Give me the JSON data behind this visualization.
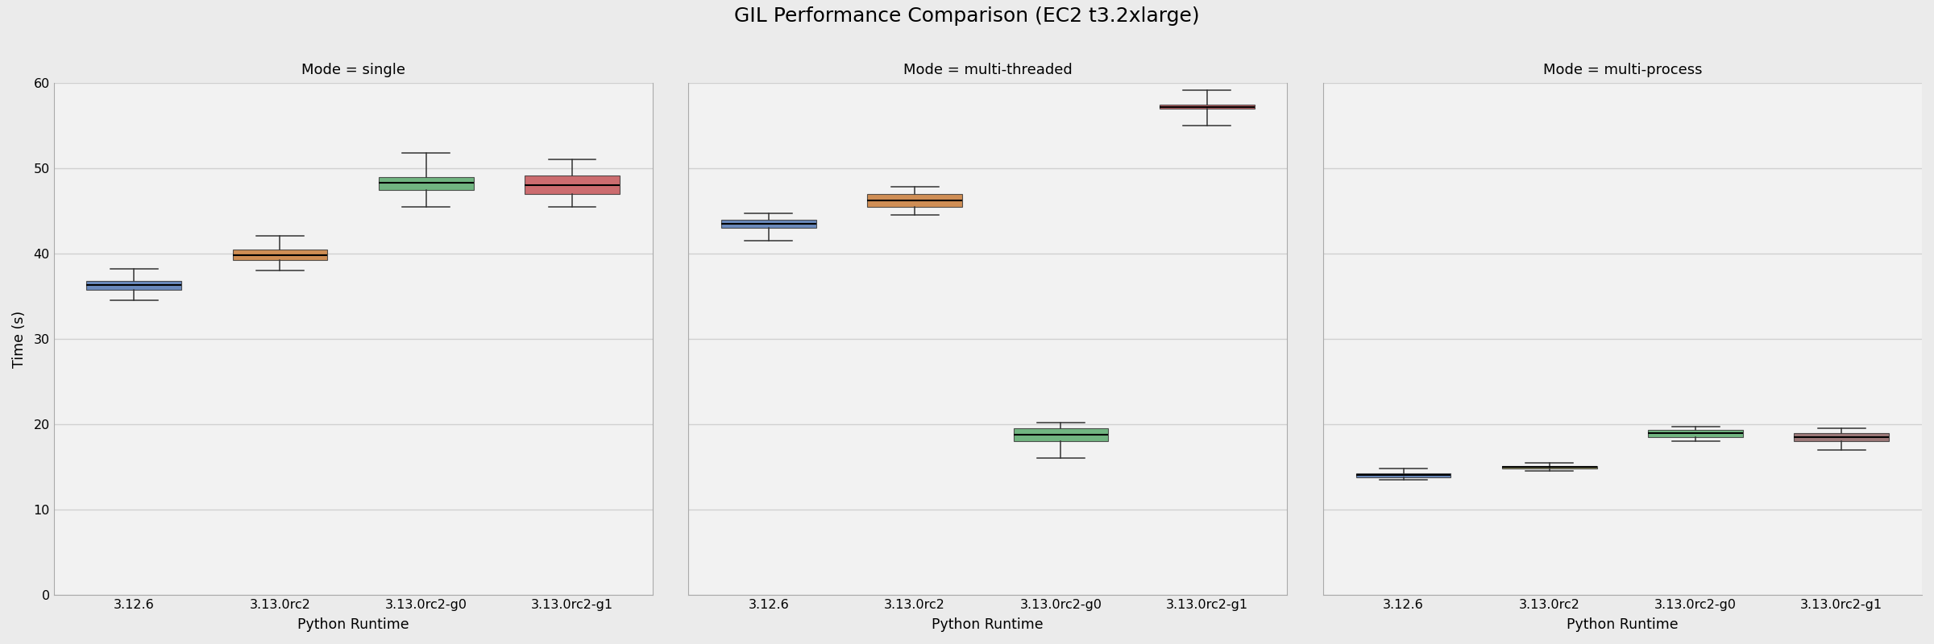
{
  "title": "GIL Performance Comparison (EC2 t3.2xlarge)",
  "modes": [
    "single",
    "multi-threaded",
    "multi-process"
  ],
  "runtimes": [
    "3.12.6",
    "3.13.0rc2",
    "3.13.0rc2-g0",
    "3.13.0rc2-g1"
  ],
  "xlabel": "Python Runtime",
  "ylabel": "Time (s)",
  "colors": [
    "#4c72b0",
    "#c87832",
    "#55a868",
    "#c44e52"
  ],
  "figure_bg": "#ebebeb",
  "axes_bg": "#f2f2f2",
  "ylim": [
    0,
    60
  ],
  "yticks": [
    0,
    10,
    20,
    30,
    40,
    50,
    60
  ],
  "grid_color": "#d0d0d0",
  "spine_color": "#aaaaaa",
  "box_data": {
    "single": {
      "3.12.6": {
        "whislo": 34.5,
        "q1": 35.8,
        "med": 36.3,
        "q3": 36.8,
        "whishi": 38.2
      },
      "3.13.0rc2": {
        "whislo": 38.0,
        "q1": 39.2,
        "med": 39.8,
        "q3": 40.5,
        "whishi": 42.1
      },
      "3.13.0rc2-g0": {
        "whislo": 45.5,
        "q1": 47.5,
        "med": 48.3,
        "q3": 49.0,
        "whishi": 51.8
      },
      "3.13.0rc2-g1": {
        "whislo": 45.5,
        "q1": 47.0,
        "med": 48.0,
        "q3": 49.2,
        "whishi": 51.0
      }
    },
    "multi-threaded": {
      "3.12.6": {
        "whislo": 41.5,
        "q1": 43.0,
        "med": 43.5,
        "q3": 44.0,
        "whishi": 44.7
      },
      "3.13.0rc2": {
        "whislo": 44.5,
        "q1": 45.5,
        "med": 46.2,
        "q3": 47.0,
        "whishi": 47.8
      },
      "3.13.0rc2-g0": {
        "whislo": 16.0,
        "q1": 18.0,
        "med": 18.8,
        "q3": 19.5,
        "whishi": 20.2
      },
      "3.13.0rc2-g1": {
        "whislo": 55.0,
        "q1": 57.0,
        "med": 57.2,
        "q3": 57.5,
        "whishi": 59.2
      }
    },
    "multi-process": {
      "3.12.6": {
        "whislo": 13.5,
        "q1": 13.8,
        "med": 14.0,
        "q3": 14.2,
        "whishi": 14.8
      },
      "3.13.0rc2": {
        "whislo": 14.5,
        "q1": 14.8,
        "med": 15.0,
        "q3": 15.1,
        "whishi": 15.5
      },
      "3.13.0rc2-g0": {
        "whislo": 18.0,
        "q1": 18.5,
        "med": 19.0,
        "q3": 19.3,
        "whishi": 19.7
      },
      "3.13.0rc2-g1": {
        "whislo": 17.0,
        "q1": 18.0,
        "med": 18.5,
        "q3": 19.0,
        "whishi": 19.5
      }
    }
  },
  "colors_by_runtime": {
    "3.12.6": "#4c72b0",
    "3.13.0rc2": "#c87832",
    "3.13.0rc2-g0": "#55a868",
    "3.13.0rc2-g1": "#c44e52"
  },
  "colors_multiprocess": {
    "3.12.6": "#4c72b0",
    "3.13.0rc2": "#7a7a40",
    "3.13.0rc2-g0": "#55a868",
    "3.13.0rc2-g1": "#8b5e5e"
  }
}
